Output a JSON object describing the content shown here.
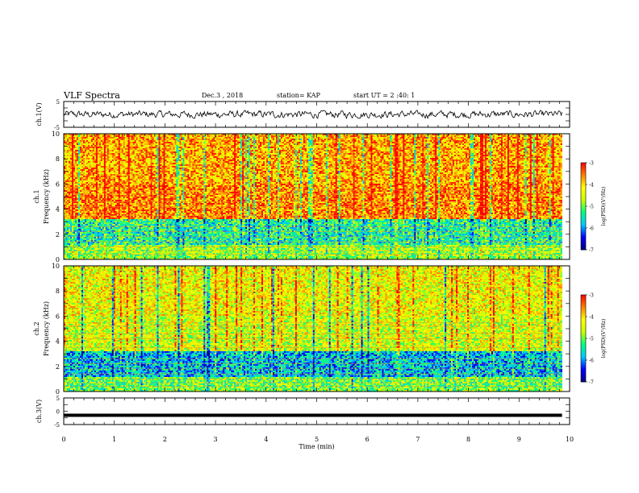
{
  "header": {
    "title": "VLF Spectra",
    "date": "Dec.3 , 2018",
    "station": "station= KAP",
    "start": "start UT = 2 :40: 1"
  },
  "colors": {
    "background": "#ffffff",
    "axes": "#000000",
    "colormap": [
      "#000080",
      "#0000ff",
      "#00c8ff",
      "#00ff80",
      "#c8ff00",
      "#ffff00",
      "#ff8000",
      "#ff0000",
      "#ffffff"
    ]
  },
  "chart_data": [
    {
      "type": "line",
      "panel": "top-waveform",
      "ylabel": "ch.1(V)",
      "ylim": [
        -5,
        5
      ],
      "ytick_labels": [
        "5",
        "-5"
      ],
      "xlim": [
        0,
        10
      ],
      "description_values": "noisy waveform oscillating roughly between -1.5 and 1.5 V",
      "y_range_observed": [
        -1.5,
        1.5
      ]
    },
    {
      "type": "heatmap",
      "panel": "ch1-spectrogram",
      "ylabel": "ch.1",
      "ylabel2": "Frequency (kHz)",
      "ylim": [
        0,
        10
      ],
      "ytick_labels": [
        "0",
        "2",
        "4",
        "6",
        "8",
        "10"
      ],
      "xlim": [
        0,
        10
      ],
      "colorbar": {
        "label": "log(PSD)(V²/Hz)",
        "range": [
          -7,
          -3
        ],
        "tick_labels": [
          "-3",
          "-4",
          "-5",
          "-6",
          "-7"
        ]
      },
      "bands": {
        "0-1.2": -4.8,
        "1.2-3.2": -5.4,
        "3.2-6": -3.6,
        "6-10": -3.8
      }
    },
    {
      "type": "heatmap",
      "panel": "ch2-spectrogram",
      "ylabel": "ch.2",
      "ylabel2": "Frequency (kHz)",
      "ylim": [
        0,
        10
      ],
      "ytick_labels": [
        "0",
        "2",
        "4",
        "6",
        "8",
        "10"
      ],
      "xlim": [
        0,
        10
      ],
      "colorbar": {
        "label": "log(PSD)(V²/Hz)",
        "range": [
          -7,
          -3
        ],
        "tick_labels": [
          "-3",
          "-4",
          "-5",
          "-6",
          "-7"
        ]
      },
      "bands": {
        "0-1.2": -5.0,
        "1.2-3.2": -5.8,
        "3.2-6": -4.5,
        "6-10": -4.3
      }
    },
    {
      "type": "line",
      "panel": "bottom-waveform",
      "ylabel": "ch.3(V)",
      "ylim": [
        -5,
        5
      ],
      "ytick_labels": [
        "5",
        "0",
        "-5"
      ],
      "xlim": [
        0,
        10
      ],
      "constant_value": -1.5
    }
  ],
  "xaxis": {
    "label": "Time (min)",
    "tick_labels": [
      "0",
      "1",
      "2",
      "3",
      "4",
      "5",
      "6",
      "7",
      "8",
      "9",
      "10"
    ]
  }
}
